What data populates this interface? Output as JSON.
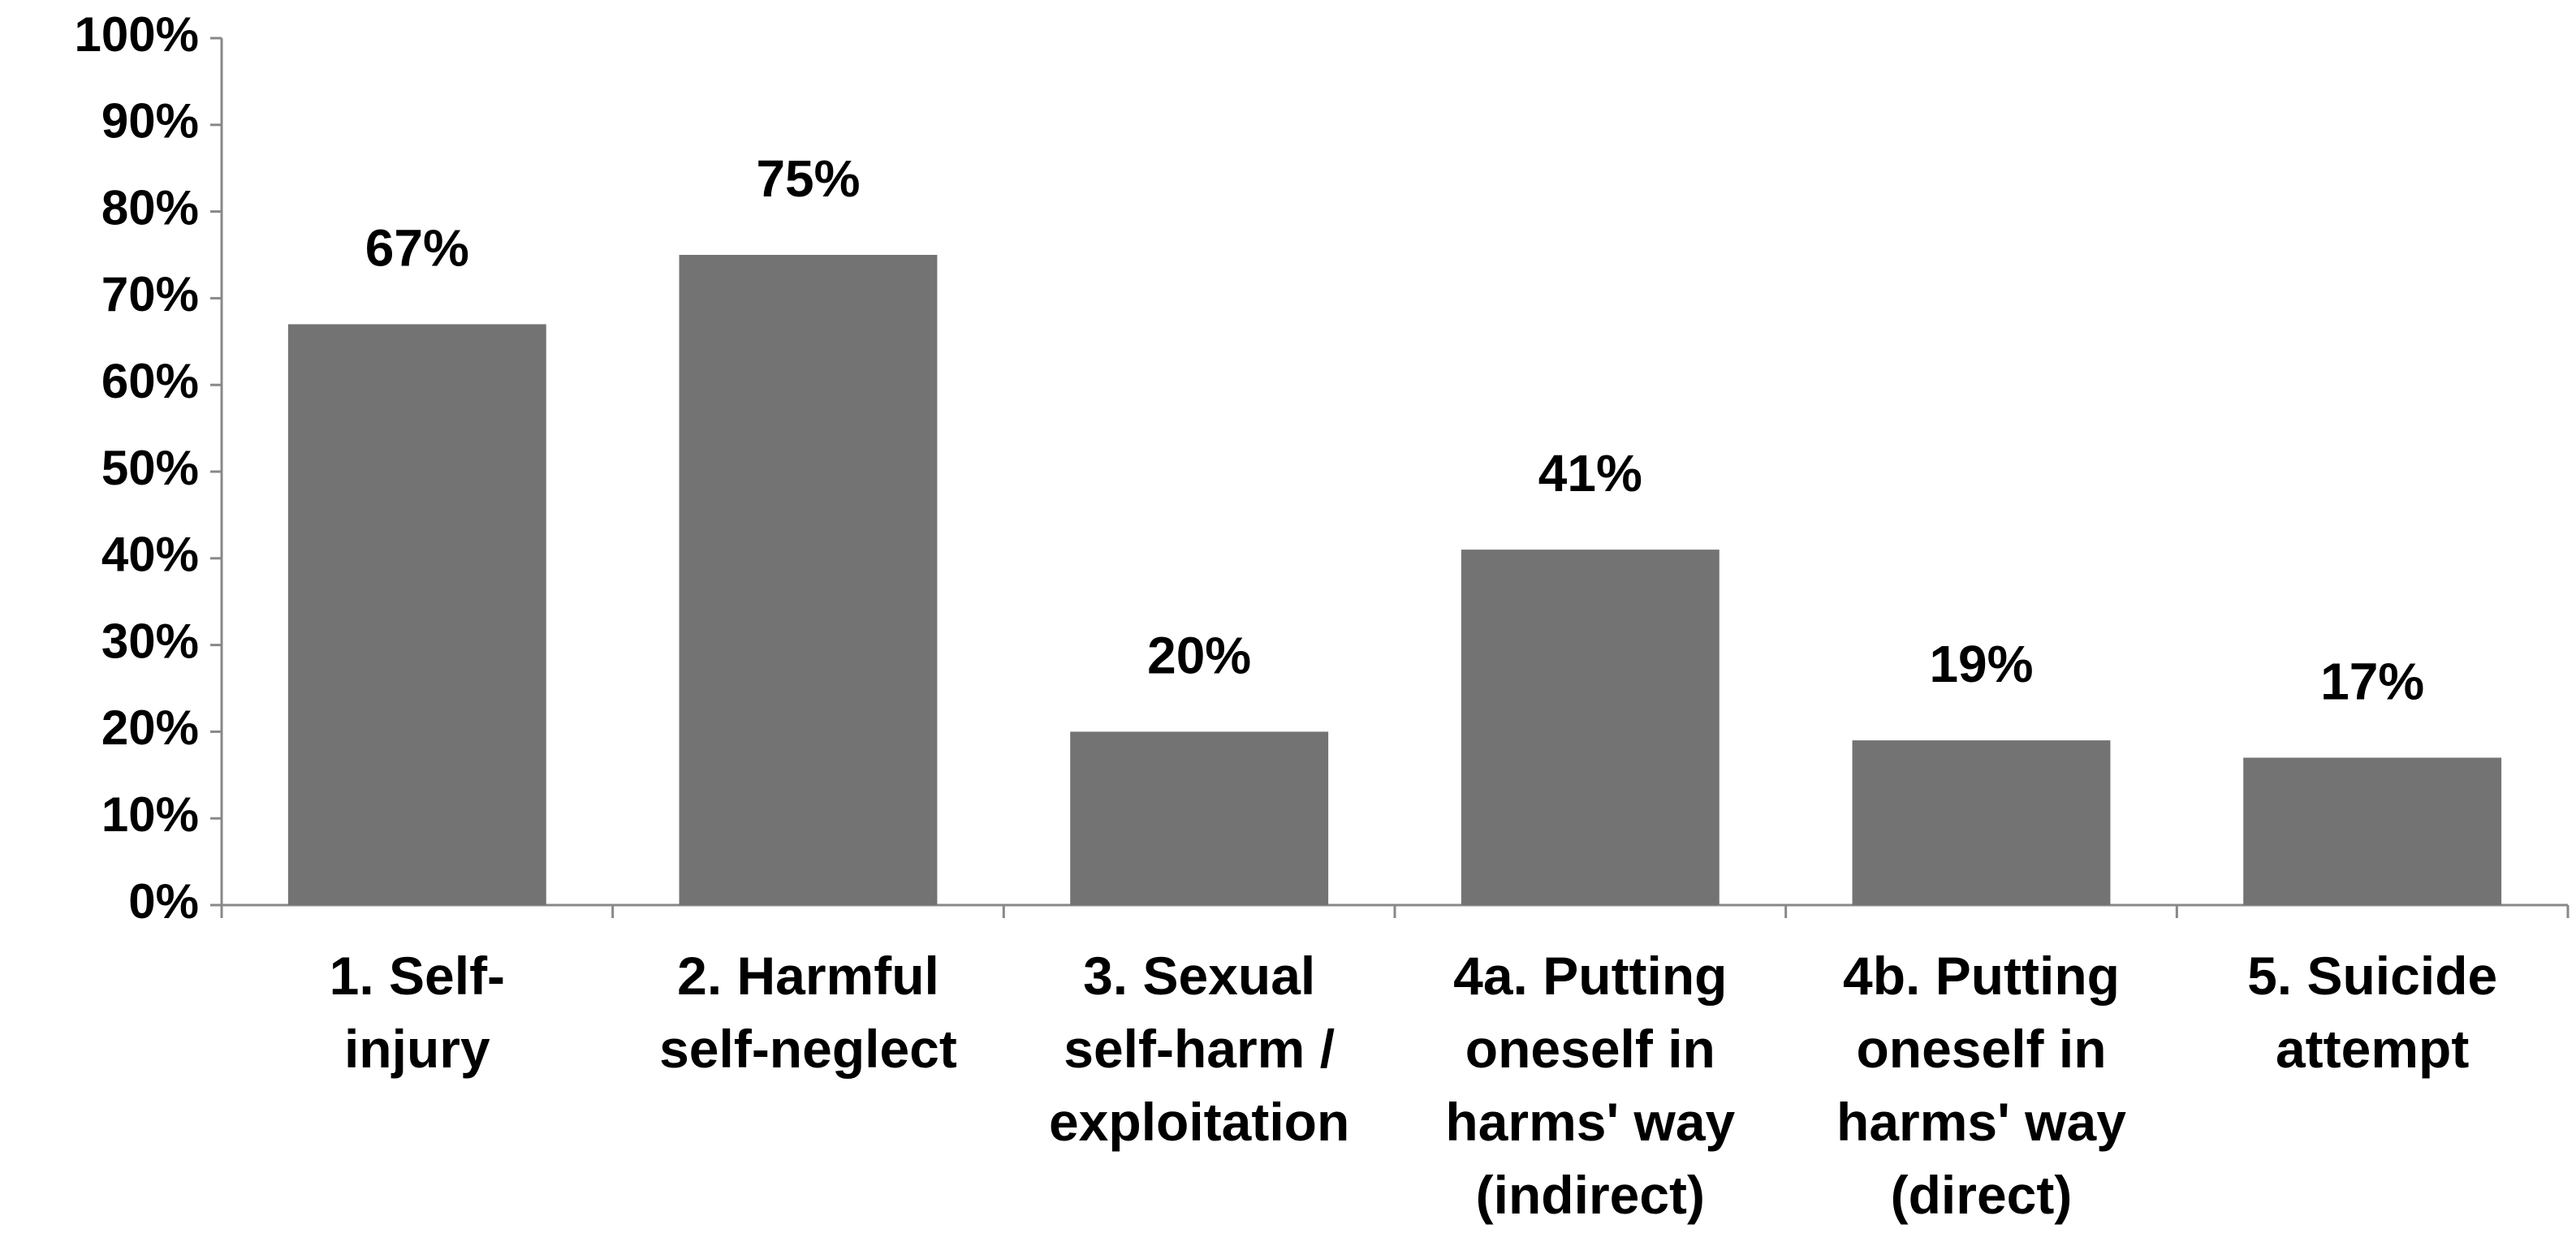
{
  "chart_data": {
    "type": "bar",
    "categories": [
      "1. Self-\ninjury",
      "2. Harmful\nself-neglect",
      "3. Sexual\nself-harm /\nexploitation",
      "4a. Putting\noneself in\nharms' way\n(indirect)",
      "4b. Putting\noneself in\nharms' way\n(direct)",
      "5. Suicide\nattempt"
    ],
    "values": [
      67,
      75,
      20,
      41,
      19,
      17
    ],
    "value_labels": [
      "67%",
      "75%",
      "20%",
      "41%",
      "19%",
      "17%"
    ],
    "color": "#737373",
    "ylim": [
      0,
      100
    ],
    "yticks": [
      {
        "value": 0,
        "label": "0%"
      },
      {
        "value": 10,
        "label": "10%"
      },
      {
        "value": 20,
        "label": "20%"
      },
      {
        "value": 30,
        "label": "30%"
      },
      {
        "value": 40,
        "label": "40%"
      },
      {
        "value": 50,
        "label": "50%"
      },
      {
        "value": 60,
        "label": "60%"
      },
      {
        "value": 70,
        "label": "70%"
      },
      {
        "value": 80,
        "label": "80%"
      },
      {
        "value": 90,
        "label": "90%"
      },
      {
        "value": 100,
        "label": "100%"
      }
    ],
    "grid": false
  }
}
